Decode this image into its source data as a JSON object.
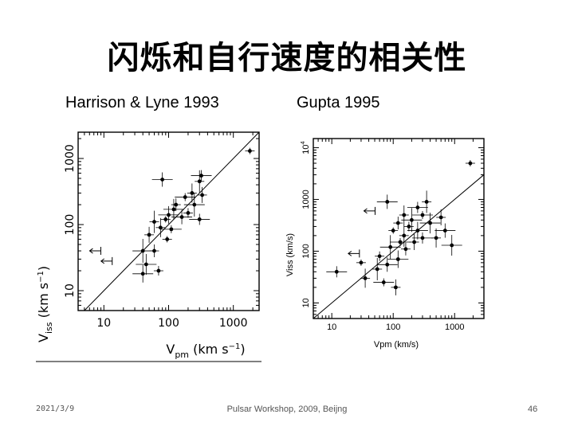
{
  "slide": {
    "title": "闪烁和自行速度的相关性",
    "left_caption": "Harrison & Lyne  1993",
    "right_caption": "Gupta 1995",
    "footer_date": "2021/3/9",
    "footer_event": "Pulsar Workshop, 2009, Beijng",
    "page_number": "46"
  },
  "chart_data": [
    {
      "type": "scatter",
      "title": "",
      "xlabel": "V_pm (km s^-1)",
      "ylabel": "V_iss (km s^-1)",
      "xscale": "log",
      "yscale": "log",
      "xlim": [
        4,
        2500
      ],
      "ylim": [
        5,
        2500
      ],
      "xticks": [
        "10",
        "100",
        "1000"
      ],
      "yticks": [
        "10",
        "100",
        "1000"
      ],
      "reference_line": "y = x",
      "points": [
        {
          "x": 1800,
          "y": 1300
        },
        {
          "x": 80,
          "y": 480
        },
        {
          "x": 300,
          "y": 450
        },
        {
          "x": 320,
          "y": 550
        },
        {
          "x": 230,
          "y": 300
        },
        {
          "x": 180,
          "y": 260
        },
        {
          "x": 330,
          "y": 280
        },
        {
          "x": 250,
          "y": 200
        },
        {
          "x": 130,
          "y": 200
        },
        {
          "x": 120,
          "y": 170
        },
        {
          "x": 200,
          "y": 150
        },
        {
          "x": 100,
          "y": 140
        },
        {
          "x": 90,
          "y": 120
        },
        {
          "x": 160,
          "y": 130
        },
        {
          "x": 60,
          "y": 110
        },
        {
          "x": 300,
          "y": 120
        },
        {
          "x": 75,
          "y": 90
        },
        {
          "x": 110,
          "y": 85
        },
        {
          "x": 50,
          "y": 70
        },
        {
          "x": 40,
          "y": 40
        },
        {
          "x": 60,
          "y": 40
        },
        {
          "x": 45,
          "y": 25
        },
        {
          "x": 70,
          "y": 20
        },
        {
          "x": 40,
          "y": 18
        },
        {
          "x": 95,
          "y": 60
        }
      ],
      "upper_limits": [
        {
          "x": 8,
          "y": 40
        },
        {
          "x": 12,
          "y": 28
        }
      ]
    },
    {
      "type": "scatter",
      "title": "",
      "xlabel": "Vpm (km/s)",
      "ylabel": "Viss (km/s)",
      "xscale": "log",
      "yscale": "log",
      "xlim": [
        5,
        3000
      ],
      "ylim": [
        5,
        15000
      ],
      "xticks": [
        "10",
        "100",
        "1000"
      ],
      "yticks": [
        "10",
        "100",
        "1000",
        "10^4"
      ],
      "reference_line": "y = x",
      "points": [
        {
          "x": 1800,
          "y": 5000
        },
        {
          "x": 80,
          "y": 900
        },
        {
          "x": 350,
          "y": 900
        },
        {
          "x": 250,
          "y": 700
        },
        {
          "x": 150,
          "y": 500
        },
        {
          "x": 300,
          "y": 500
        },
        {
          "x": 600,
          "y": 450
        },
        {
          "x": 200,
          "y": 400
        },
        {
          "x": 120,
          "y": 350
        },
        {
          "x": 400,
          "y": 350
        },
        {
          "x": 180,
          "y": 300
        },
        {
          "x": 250,
          "y": 250
        },
        {
          "x": 100,
          "y": 250
        },
        {
          "x": 700,
          "y": 250
        },
        {
          "x": 150,
          "y": 200
        },
        {
          "x": 300,
          "y": 180
        },
        {
          "x": 500,
          "y": 180
        },
        {
          "x": 130,
          "y": 150
        },
        {
          "x": 220,
          "y": 150
        },
        {
          "x": 90,
          "y": 120
        },
        {
          "x": 160,
          "y": 110
        },
        {
          "x": 900,
          "y": 130
        },
        {
          "x": 60,
          "y": 80
        },
        {
          "x": 120,
          "y": 70
        },
        {
          "x": 30,
          "y": 60
        },
        {
          "x": 80,
          "y": 55
        },
        {
          "x": 55,
          "y": 45
        },
        {
          "x": 12,
          "y": 40
        },
        {
          "x": 35,
          "y": 30
        },
        {
          "x": 70,
          "y": 25
        },
        {
          "x": 110,
          "y": 20
        }
      ],
      "upper_limits": [
        {
          "x": 45,
          "y": 600
        },
        {
          "x": 25,
          "y": 90
        }
      ]
    }
  ]
}
